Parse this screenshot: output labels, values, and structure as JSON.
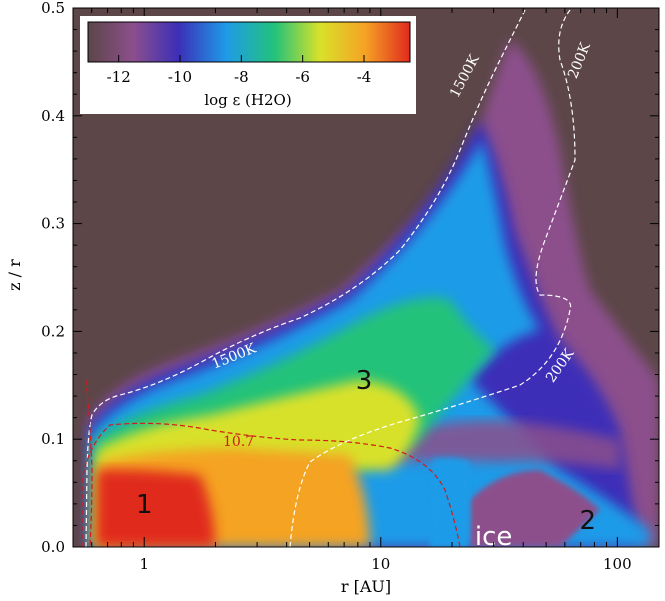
{
  "chart_data": {
    "type": "heatmap",
    "xlabel": "r [AU]",
    "ylabel": "z / r",
    "xscale": "log",
    "xlim": [
      0.5,
      150
    ],
    "ylim": [
      0.0,
      0.5
    ],
    "x_ticks": [
      "1",
      "10",
      "100"
    ],
    "y_ticks": [
      "0.0",
      "0.1",
      "0.2",
      "0.3",
      "0.4",
      "0.5"
    ],
    "colorbar": {
      "label": "log ε (H2O)",
      "ticks": [
        "-12",
        "-10",
        "-8",
        "-6",
        "-4"
      ],
      "range": [
        -13,
        -2.5
      ],
      "colormap": [
        "#5c4648",
        "#8c4f8c",
        "#3c2fb8",
        "#1f9be8",
        "#23c27a",
        "#d8e12a",
        "#f5a324",
        "#e02a1e"
      ]
    },
    "contours": [
      {
        "label": "1500K",
        "color": "#ffffff"
      },
      {
        "label": "1500K",
        "color": "#ffffff"
      },
      {
        "label": "200K",
        "color": "#ffffff"
      },
      {
        "label": "200K",
        "color": "#ffffff"
      },
      {
        "label": "10.7",
        "color": "#d21a1a"
      }
    ],
    "regions": [
      {
        "label": "1",
        "r": 1.0,
        "z": 0.04
      },
      {
        "label": "2",
        "r": 75,
        "z": 0.025
      },
      {
        "label": "3",
        "r": 8.5,
        "z": 0.155
      },
      {
        "label": "ice",
        "r": 30,
        "z": 0.01
      }
    ]
  }
}
